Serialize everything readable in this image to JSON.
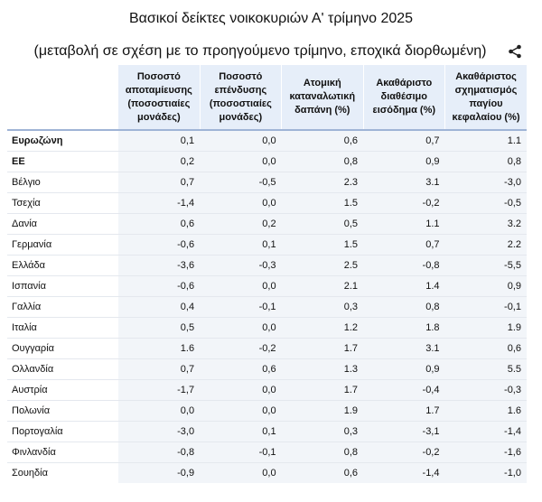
{
  "title": "Βασικοί δείκτες νοικοκυριών Α' τρίμηνο 2025",
  "subtitle": "(μεταβολή σε σχέση με το προηγούμενο τρίμηνο, εποχικά διορθωμένη)",
  "share_icon": "share-icon",
  "columns": [
    "Ποσοστό αποταμίευσης (ποσοστιαίες μονάδες)",
    "Ποσοστό επένδυσης (ποσοστιαίες μονάδες)",
    "Ατομική καταναλωτική δαπάνη (%)",
    "Ακαθάριστο διαθέσιμο εισόδημα (%)",
    "Ακαθάριστος σχηματισμός παγίου κεφαλαίου (%)"
  ],
  "rows": [
    {
      "country": "Ευρωζώνη",
      "values": [
        "0,1",
        "0,0",
        "0,6",
        "0,7",
        "1.1"
      ]
    },
    {
      "country": "ΕΕ",
      "values": [
        "0,2",
        "0,0",
        "0,8",
        "0,9",
        "0,8"
      ]
    },
    {
      "country": "Βέλγιο",
      "values": [
        "0,7",
        "-0,5",
        "2.3",
        "3.1",
        "-3,0"
      ]
    },
    {
      "country": "Τσεχία",
      "values": [
        "-1,4",
        "0,0",
        "1.5",
        "-0,2",
        "-0,5"
      ]
    },
    {
      "country": "Δανία",
      "values": [
        "0,6",
        "0,2",
        "0,5",
        "1.1",
        "3.2"
      ]
    },
    {
      "country": "Γερμανία",
      "values": [
        "-0,6",
        "0,1",
        "1.5",
        "0,7",
        "2.2"
      ]
    },
    {
      "country": "Ελλάδα",
      "values": [
        "-3,6",
        "-0,3",
        "2.5",
        "-0,8",
        "-5,5"
      ]
    },
    {
      "country": "Ισπανία",
      "values": [
        "-0,6",
        "0,0",
        "2.1",
        "1.4",
        "0,9"
      ]
    },
    {
      "country": "Γαλλία",
      "values": [
        "0,4",
        "-0,1",
        "0,3",
        "0,8",
        "-0,1"
      ]
    },
    {
      "country": "Ιταλία",
      "values": [
        "0,5",
        "0,0",
        "1.2",
        "1.8",
        "1.9"
      ]
    },
    {
      "country": "Ουγγαρία",
      "values": [
        "1.6",
        "-0,2",
        "1.7",
        "3.1",
        "0,6"
      ]
    },
    {
      "country": "Ολλανδία",
      "values": [
        "0,7",
        "0,6",
        "1.3",
        "0,9",
        "5.5"
      ]
    },
    {
      "country": "Αυστρία",
      "values": [
        "-1,7",
        "0,0",
        "1.7",
        "-0,4",
        "-0,3"
      ]
    },
    {
      "country": "Πολωνία",
      "values": [
        "0,0",
        "0,0",
        "1.9",
        "1.7",
        "1.6"
      ]
    },
    {
      "country": "Πορτογαλία",
      "values": [
        "-3,0",
        "0,1",
        "0,3",
        "-3,1",
        "-1,4"
      ]
    },
    {
      "country": "Φινλανδία",
      "values": [
        "-0,8",
        "-0,1",
        "0,8",
        "-0,2",
        "-1,6"
      ]
    },
    {
      "country": "Σουηδία",
      "values": [
        "-0,9",
        "0,0",
        "0,6",
        "-1,4",
        "-1,0"
      ]
    }
  ]
}
